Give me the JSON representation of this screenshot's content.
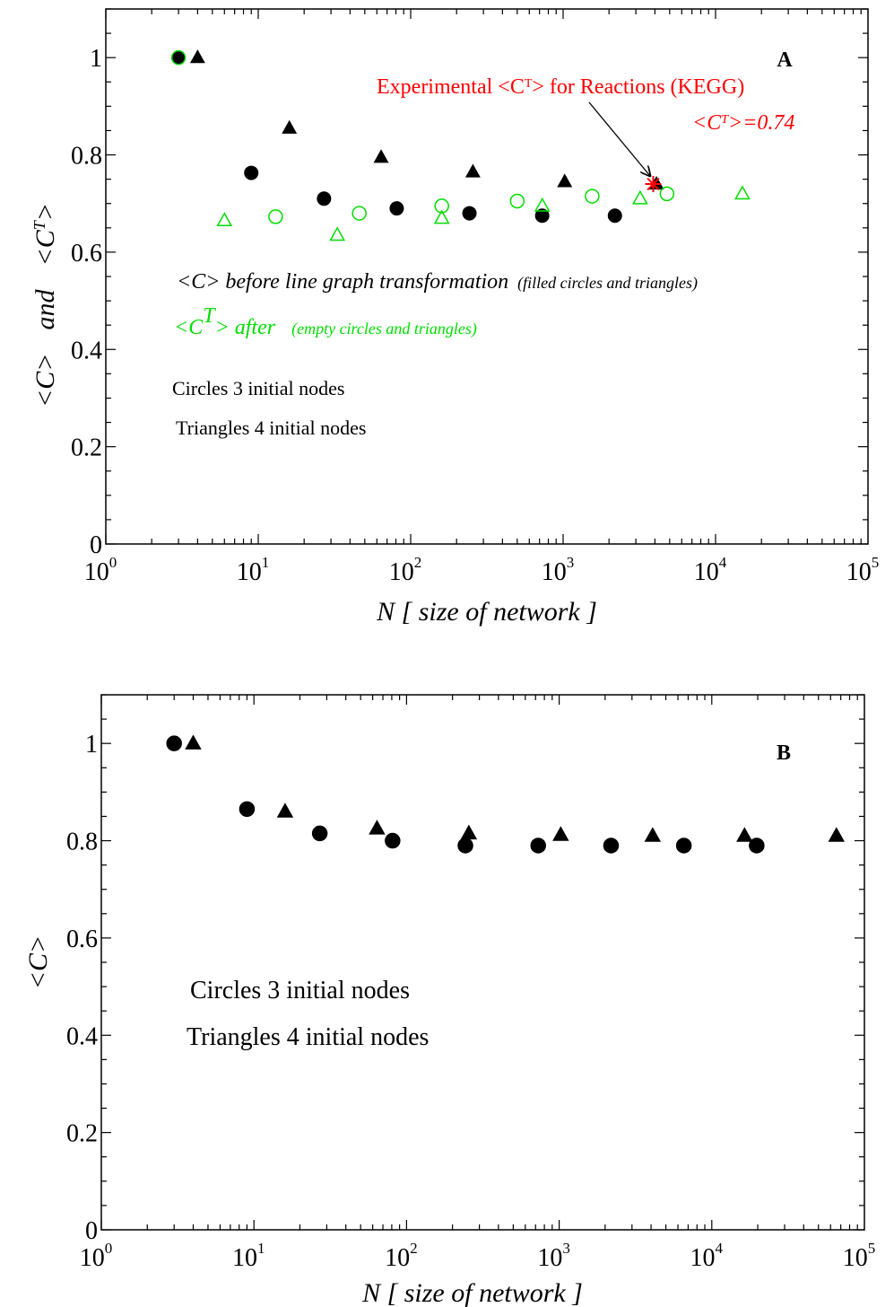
{
  "chart_data": [
    {
      "panel": "A",
      "type": "scatter",
      "xscale": "log",
      "xlim": [
        1,
        100000
      ],
      "ylim": [
        0,
        1.1
      ],
      "xticks": [
        {
          "base": "10",
          "exp": "0",
          "value": 1
        },
        {
          "base": "10",
          "exp": "1",
          "value": 10
        },
        {
          "base": "10",
          "exp": "2",
          "value": 100
        },
        {
          "base": "10",
          "exp": "3",
          "value": 1000
        },
        {
          "base": "10",
          "exp": "4",
          "value": 10000
        },
        {
          "base": "10",
          "exp": "5",
          "value": 100000
        }
      ],
      "yticks": [
        {
          "label": "0",
          "value": 0
        },
        {
          "label": "0.2",
          "value": 0.2
        },
        {
          "label": "0.4",
          "value": 0.4
        },
        {
          "label": "0.6",
          "value": 0.6
        },
        {
          "label": "0.8",
          "value": 0.8
        },
        {
          "label": "1",
          "value": 1
        }
      ],
      "xlabel": "N [ size of network ]",
      "ylabel": {
        "part1": "<C>",
        "part2": "and",
        "part3": "<C",
        "part3_sup": "T",
        "part4": ">"
      },
      "panel_label": "A",
      "series": [
        {
          "marker": "circle",
          "filled": true,
          "color": "#000000",
          "x": [
            3,
            9,
            27,
            81,
            243,
            729,
            2187
          ],
          "y": [
            1.0,
            0.763,
            0.71,
            0.69,
            0.68,
            0.675,
            0.675
          ]
        },
        {
          "marker": "triangle",
          "filled": true,
          "color": "#000000",
          "x": [
            4,
            16,
            64,
            256,
            1024,
            4096
          ],
          "y": [
            1.0,
            0.855,
            0.795,
            0.765,
            0.745,
            0.74
          ]
        },
        {
          "marker": "circle",
          "filled": false,
          "color": "#00dd00",
          "x": [
            3,
            13,
            46,
            160,
            500,
            1550,
            4800
          ],
          "y": [
            1.0,
            0.673,
            0.68,
            0.695,
            0.705,
            0.715,
            0.72
          ]
        },
        {
          "marker": "triangle",
          "filled": false,
          "color": "#00dd00",
          "x": [
            6,
            33,
            160,
            730,
            3200,
            15000
          ],
          "y": [
            0.665,
            0.635,
            0.67,
            0.695,
            0.71,
            0.72
          ]
        }
      ],
      "highlight": {
        "marker": "asterisk",
        "color": "#ff0000",
        "x": 3900,
        "y": 0.74
      },
      "annotations": {
        "exp_title_part1": "Experimental  <C",
        "exp_title_sup": "T",
        "exp_title_part2": "> for Reactions (KEGG)",
        "exp_value_part1": "<C",
        "exp_value_sup": "T",
        "exp_value_part2": ">=0.74",
        "before_main": "<C> before line graph transformation",
        "before_small": "(filled circles and triangles)",
        "after_part1": "<C",
        "after_sup": "T",
        "after_part2": "> after",
        "after_small": "(empty circles and triangles)",
        "circles_note": "Circles 3 initial nodes",
        "triangles_note": "Triangles 4 initial nodes"
      },
      "colors": {
        "black": "#000000",
        "green": "#00dd00",
        "red": "#ff0000"
      }
    },
    {
      "panel": "B",
      "type": "scatter",
      "xscale": "log",
      "xlim": [
        1,
        100000
      ],
      "ylim": [
        0,
        1.1
      ],
      "xticks": [
        {
          "base": "10",
          "exp": "0",
          "value": 1
        },
        {
          "base": "10",
          "exp": "1",
          "value": 10
        },
        {
          "base": "10",
          "exp": "2",
          "value": 100
        },
        {
          "base": "10",
          "exp": "3",
          "value": 1000
        },
        {
          "base": "10",
          "exp": "4",
          "value": 10000
        },
        {
          "base": "10",
          "exp": "5",
          "value": 100000
        }
      ],
      "yticks": [
        {
          "label": "0",
          "value": 0
        },
        {
          "label": "0.2",
          "value": 0.2
        },
        {
          "label": "0.4",
          "value": 0.4
        },
        {
          "label": "0.6",
          "value": 0.6
        },
        {
          "label": "0.8",
          "value": 0.8
        },
        {
          "label": "1",
          "value": 1
        }
      ],
      "xlabel": "N [ size of network ]",
      "ylabel": "<C>",
      "panel_label": "B",
      "series": [
        {
          "marker": "circle",
          "filled": true,
          "color": "#000000",
          "x": [
            3,
            9,
            27,
            81,
            243,
            729,
            2187,
            6561,
            19683
          ],
          "y": [
            1.0,
            0.865,
            0.815,
            0.8,
            0.79,
            0.79,
            0.79,
            0.79,
            0.79
          ]
        },
        {
          "marker": "triangle",
          "filled": true,
          "color": "#000000",
          "x": [
            4,
            16,
            64,
            256,
            1024,
            4096,
            16384,
            65536
          ],
          "y": [
            1.0,
            0.86,
            0.825,
            0.815,
            0.812,
            0.81,
            0.81,
            0.81
          ]
        }
      ],
      "annotations": {
        "circles_note": "Circles 3 initial nodes",
        "triangles_note": "Triangles 4 initial nodes"
      }
    }
  ]
}
